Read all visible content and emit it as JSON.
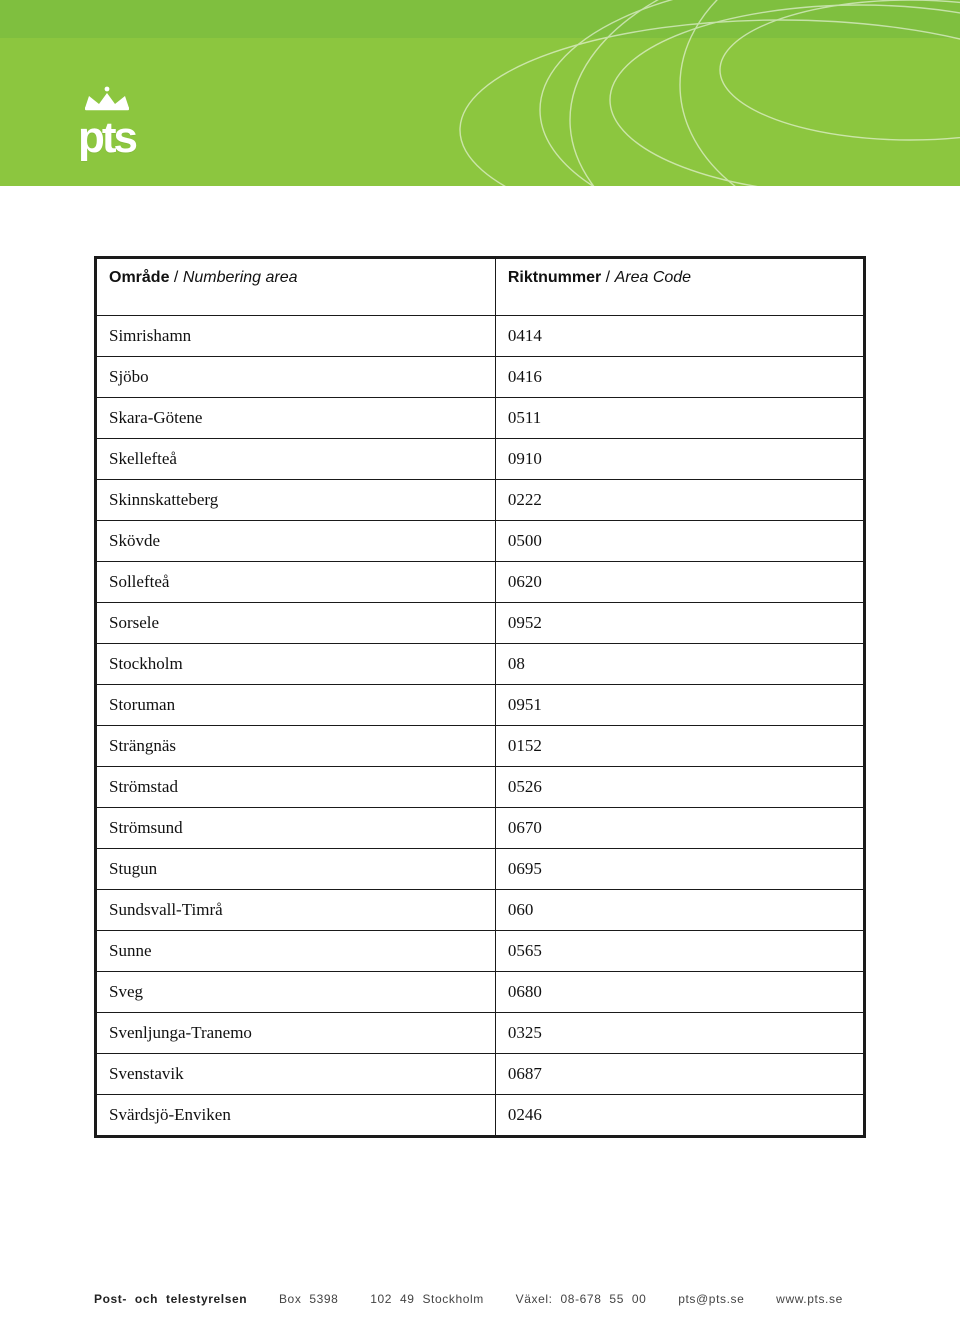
{
  "brand": {
    "name": "pts",
    "logo_text": "PTS"
  },
  "colors": {
    "header_top": "#7fbf3f",
    "header_main": "#8cc63f",
    "arc_stroke": "#ffffff",
    "page_bg": "#ffffff",
    "table_border": "#1a1a1a",
    "text": "#111111",
    "footer_text": "#444444"
  },
  "table": {
    "header": {
      "col1_bold": "Område",
      "col1_sep": " / ",
      "col1_ital": "Numbering area",
      "col2_bold": "Riktnummer",
      "col2_sep": " / ",
      "col2_ital": "Area Code"
    },
    "rows": [
      {
        "area": "Simrishamn",
        "code": "0414"
      },
      {
        "area": "Sjöbo",
        "code": "0416"
      },
      {
        "area": "Skara-Götene",
        "code": "0511"
      },
      {
        "area": "Skellefteå",
        "code": "0910"
      },
      {
        "area": "Skinnskatteberg",
        "code": "0222"
      },
      {
        "area": "Skövde",
        "code": "0500"
      },
      {
        "area": "Sollefteå",
        "code": "0620"
      },
      {
        "area": "Sorsele",
        "code": "0952"
      },
      {
        "area": "Stockholm",
        "code": "08"
      },
      {
        "area": "Storuman",
        "code": "0951"
      },
      {
        "area": "Strängnäs",
        "code": "0152"
      },
      {
        "area": "Strömstad",
        "code": "0526"
      },
      {
        "area": "Strömsund",
        "code": "0670"
      },
      {
        "area": "Stugun",
        "code": "0695"
      },
      {
        "area": "Sundsvall-Timrå",
        "code": "060"
      },
      {
        "area": "Sunne",
        "code": "0565"
      },
      {
        "area": "Sveg",
        "code": "0680"
      },
      {
        "area": "Svenljunga-Tranemo",
        "code": "0325"
      },
      {
        "area": "Svenstavik",
        "code": "0687"
      },
      {
        "area": "Svärdsjö-Enviken",
        "code": "0246"
      }
    ]
  },
  "footer": {
    "org": "Post- och telestyrelsen",
    "box": "Box 5398",
    "city": "102 49 Stockholm",
    "switch_label": "Växel:",
    "switch_number": "08-678 55 00",
    "email": "pts@pts.se",
    "web": "www.pts.se"
  }
}
